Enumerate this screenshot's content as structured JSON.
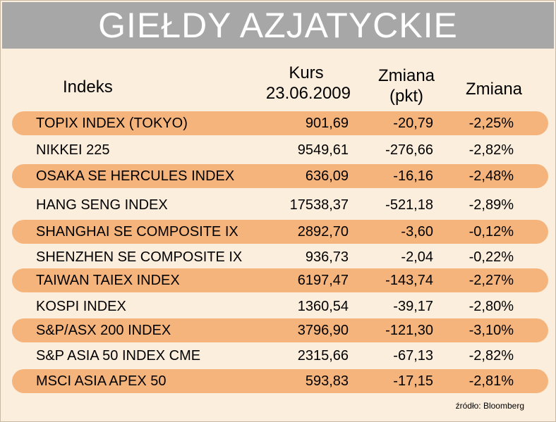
{
  "title": "GIEŁDY AZJATYCKIE",
  "headers": {
    "indeks": "Indeks",
    "kurs_line1": "Kurs",
    "kurs_line2": "23.06.2009",
    "zmiana_pkt_line1": "Zmiana",
    "zmiana_pkt_line2": "(pkt)",
    "zmiana": "Zmiana"
  },
  "rows": [
    {
      "name": "TOPIX INDEX (TOKYO)",
      "kurs": "901,69",
      "zmiana_pkt": "-20,79",
      "zmiana_pct": "-2,25%"
    },
    {
      "name": "NIKKEI 225",
      "kurs": "9549,61",
      "zmiana_pkt": "-276,66",
      "zmiana_pct": "-2,82%"
    },
    {
      "name": "OSAKA SE HERCULES INDEX",
      "kurs": "636,09",
      "zmiana_pkt": "-16,16",
      "zmiana_pct": "-2,48%"
    },
    {
      "name": "HANG SENG INDEX",
      "kurs": "17538,37",
      "zmiana_pkt": "-521,18",
      "zmiana_pct": "-2,89%"
    },
    {
      "name": "SHANGHAI SE COMPOSITE IX",
      "kurs": "2892,70",
      "zmiana_pkt": "-3,60",
      "zmiana_pct": "-0,12%"
    },
    {
      "name": "SHENZHEN SE COMPOSITE IX",
      "kurs": "936,73",
      "zmiana_pkt": "-2,04",
      "zmiana_pct": "-0,22%"
    },
    {
      "name": "TAIWAN TAIEX INDEX",
      "kurs": "6197,47",
      "zmiana_pkt": "-143,74",
      "zmiana_pct": "-2,27%"
    },
    {
      "name": "KOSPI INDEX",
      "kurs": "1360,54",
      "zmiana_pkt": "-39,17",
      "zmiana_pct": "-2,80%"
    },
    {
      "name": "S&P/ASX 200 INDEX",
      "kurs": "3796,90",
      "zmiana_pkt": "-121,30",
      "zmiana_pct": "-3,10%"
    },
    {
      "name": "S&P ASIA 50 INDEX CME",
      "kurs": "2315,66",
      "zmiana_pkt": "-67,13",
      "zmiana_pct": "-2,82%"
    },
    {
      "name": "MSCI ASIA APEX 50",
      "kurs": "593,83",
      "zmiana_pkt": "-17,15",
      "zmiana_pct": "-2,81%"
    }
  ],
  "source": "źródło: Bloomberg",
  "colors": {
    "title_bar": "#a7a7a7",
    "background": "#fbeedd",
    "band": "#f6b47d"
  }
}
